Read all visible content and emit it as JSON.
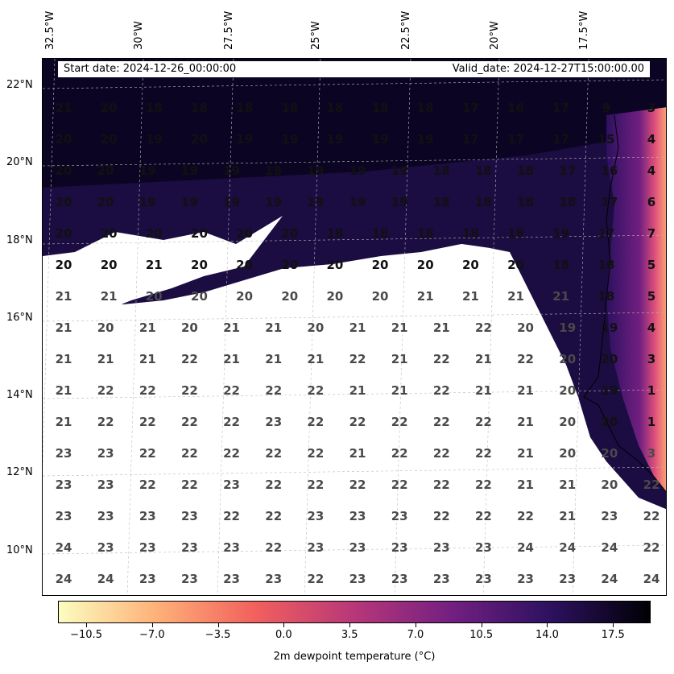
{
  "map": {
    "banner": {
      "start_date": "Start date: 2024-12-26_00:00:00",
      "valid_date": "Valid_date: 2024-12-27T15:00:00.00"
    },
    "lon_labels": [
      "32.5°W",
      "30°W",
      "27.5°W",
      "25°W",
      "22.5°W",
      "20°W",
      "17.5°W"
    ],
    "lat_labels": [
      "22°N",
      "20°N",
      "18°N",
      "16°N",
      "14°N",
      "12°N",
      "10°N"
    ],
    "value_grid": [
      [
        "21",
        "20",
        "18",
        "18",
        "18",
        "18",
        "18",
        "18",
        "18",
        "17",
        "16",
        "17",
        "9",
        "3"
      ],
      [
        "20",
        "20",
        "19",
        "20",
        "19",
        "19",
        "19",
        "19",
        "19",
        "17",
        "17",
        "17",
        "15",
        "4"
      ],
      [
        "20",
        "20",
        "19",
        "19",
        "19",
        "18",
        "19",
        "19",
        "19",
        "18",
        "18",
        "18",
        "17",
        "16",
        "4"
      ],
      [
        "20",
        "20",
        "19",
        "19",
        "19",
        "19",
        "19",
        "19",
        "19",
        "18",
        "18",
        "18",
        "18",
        "17",
        "6"
      ],
      [
        "20",
        "20",
        "20",
        "20",
        "20",
        "20",
        "18",
        "18",
        "18",
        "18",
        "18",
        "19",
        "17",
        "7"
      ],
      [
        "20",
        "20",
        "21",
        "20",
        "20",
        "20",
        "20",
        "20",
        "20",
        "20",
        "20",
        "18",
        "18",
        "5"
      ],
      [
        "21",
        "21",
        "20",
        "20",
        "20",
        "20",
        "20",
        "20",
        "21",
        "21",
        "21",
        "21",
        "18",
        "5"
      ],
      [
        "21",
        "20",
        "21",
        "20",
        "21",
        "21",
        "20",
        "21",
        "21",
        "21",
        "22",
        "20",
        "19",
        "19",
        "4"
      ],
      [
        "21",
        "21",
        "21",
        "22",
        "21",
        "21",
        "21",
        "22",
        "21",
        "22",
        "21",
        "22",
        "20",
        "20",
        "3"
      ],
      [
        "21",
        "22",
        "22",
        "22",
        "22",
        "22",
        "22",
        "21",
        "21",
        "22",
        "21",
        "21",
        "20",
        "19",
        "1"
      ],
      [
        "21",
        "22",
        "22",
        "22",
        "22",
        "23",
        "22",
        "22",
        "22",
        "22",
        "22",
        "21",
        "20",
        "20",
        "1"
      ],
      [
        "23",
        "23",
        "22",
        "22",
        "22",
        "22",
        "22",
        "21",
        "22",
        "22",
        "22",
        "21",
        "20",
        "20",
        "3"
      ],
      [
        "23",
        "23",
        "22",
        "22",
        "23",
        "22",
        "22",
        "22",
        "22",
        "22",
        "22",
        "21",
        "21",
        "20",
        "22"
      ],
      [
        "23",
        "23",
        "23",
        "23",
        "22",
        "22",
        "23",
        "23",
        "23",
        "22",
        "22",
        "22",
        "21",
        "23",
        "22"
      ],
      [
        "24",
        "23",
        "23",
        "23",
        "23",
        "22",
        "23",
        "23",
        "23",
        "23",
        "23",
        "24",
        "24",
        "24",
        "22"
      ],
      [
        "24",
        "24",
        "23",
        "23",
        "23",
        "23",
        "22",
        "23",
        "23",
        "23",
        "23",
        "23",
        "23",
        "24",
        "24"
      ]
    ]
  },
  "colorbar": {
    "tick_labels": [
      "−10.5",
      "−7.0",
      "−3.5",
      "0.0",
      "3.5",
      "7.0",
      "10.5",
      "14.0",
      "17.5"
    ],
    "title": "2m dewpoint temperature (°C)",
    "range": [
      -12,
      19.5
    ],
    "colormap": "magma_r",
    "colors": [
      "#fcfdbf",
      "#feb078",
      "#f1605d",
      "#b73779",
      "#721f81",
      "#2c115f",
      "#000004"
    ]
  }
}
